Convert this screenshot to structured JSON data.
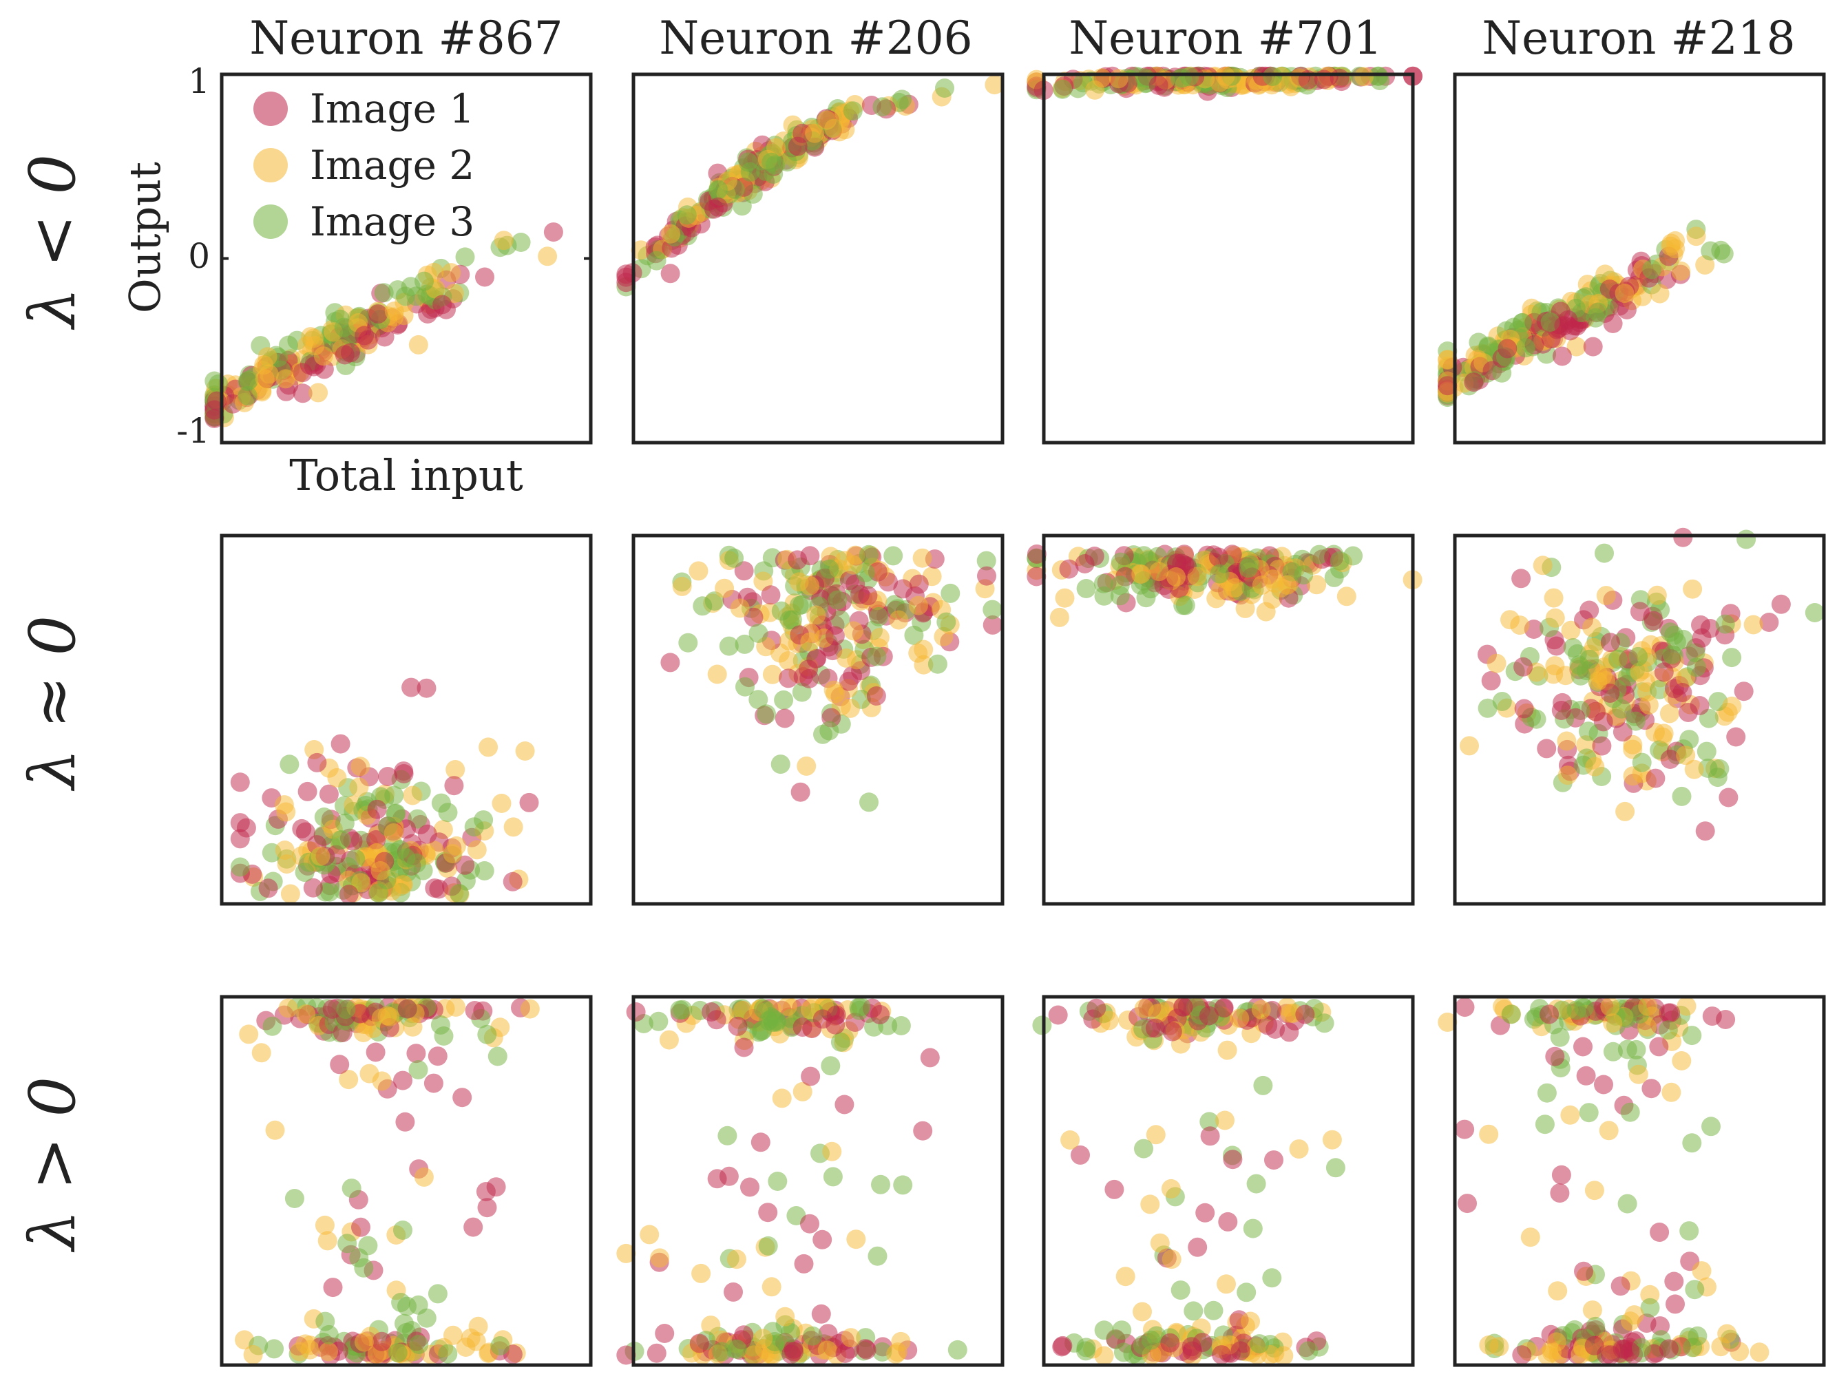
{
  "chart_data": {
    "type": "scatter",
    "columns": [
      "Neuron #867",
      "Neuron #206",
      "Neuron #701",
      "Neuron #218"
    ],
    "rows": [
      "λ < 0",
      "λ ≈ 0",
      "λ > 0"
    ],
    "xlabel": "Total input",
    "ylabel": "Output",
    "ylim": [
      -1,
      1
    ],
    "yticks": [
      "1",
      "0",
      "-1"
    ],
    "legend": {
      "placement": "top-left of first panel",
      "entries": [
        {
          "label": "Image 1",
          "color": "#c0264a"
        },
        {
          "label": "Image 2",
          "color": "#f5b731"
        },
        {
          "label": "Image 3",
          "color": "#72b23e"
        }
      ]
    },
    "panels": [
      {
        "row": 0,
        "col": 0,
        "mode": "linear",
        "slope": 0.55,
        "intercept": -0.25,
        "noise": 0.06
      },
      {
        "row": 0,
        "col": 1,
        "mode": "concave",
        "noise": 0.05
      },
      {
        "row": 0,
        "col": 2,
        "mode": "flat-top",
        "level": 0.95,
        "noise": 0.02
      },
      {
        "row": 0,
        "col": 3,
        "mode": "linear",
        "slope": 0.6,
        "intercept": -0.1,
        "noise": 0.07
      },
      {
        "row": 1,
        "col": 0,
        "mode": "bottom-cloud"
      },
      {
        "row": 1,
        "col": 1,
        "mode": "top-cloud"
      },
      {
        "row": 1,
        "col": 2,
        "mode": "top-band"
      },
      {
        "row": 1,
        "col": 3,
        "mode": "mid-cloud"
      },
      {
        "row": 2,
        "col": 0,
        "mode": "bimodal"
      },
      {
        "row": 2,
        "col": 1,
        "mode": "bimodal"
      },
      {
        "row": 2,
        "col": 2,
        "mode": "bimodal"
      },
      {
        "row": 2,
        "col": 3,
        "mode": "bimodal"
      }
    ],
    "series_colors": {
      "Image 1": "#c0264a",
      "Image 2": "#f5b731",
      "Image 3": "#72b23e"
    }
  }
}
